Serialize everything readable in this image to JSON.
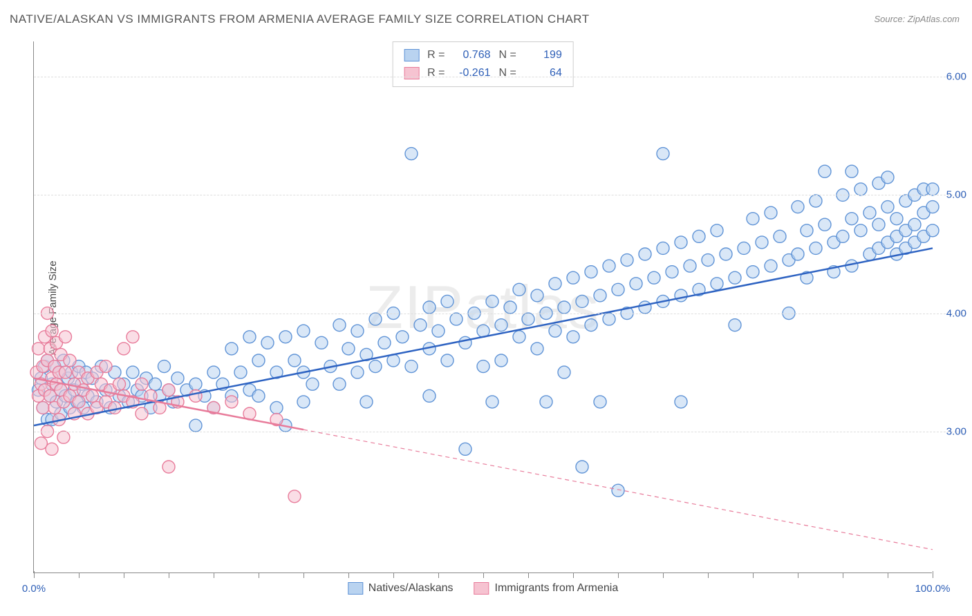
{
  "title": "NATIVE/ALASKAN VS IMMIGRANTS FROM ARMENIA AVERAGE FAMILY SIZE CORRELATION CHART",
  "source": "Source: ZipAtlas.com",
  "ylabel": "Average Family Size",
  "watermark_a": "ZIP",
  "watermark_b": "atlas",
  "chart": {
    "type": "scatter",
    "xlim": [
      0,
      100
    ],
    "ylim": [
      1.8,
      6.3
    ],
    "xticks_major": [
      0,
      100
    ],
    "xticks_major_labels": [
      "0.0%",
      "100.0%"
    ],
    "xticks_minor": [
      5,
      10,
      15,
      20,
      25,
      30,
      35,
      40,
      45,
      50,
      55,
      60,
      65,
      70,
      75,
      80,
      85,
      90,
      95
    ],
    "yticks": [
      3,
      4,
      5,
      6
    ],
    "ytick_labels": [
      "3.00",
      "4.00",
      "5.00",
      "6.00"
    ],
    "grid_color": "#dddddd",
    "marker_radius": 9,
    "marker_stroke_width": 1.4,
    "trend_line_width": 2.5
  },
  "series": [
    {
      "key": "natives",
      "label": "Natives/Alaskans",
      "fill": "#b9d3f0",
      "stroke": "#5f93d6",
      "fill_opacity": 0.55,
      "trend": {
        "x1": 0,
        "y1": 3.05,
        "x2": 100,
        "y2": 4.55,
        "color": "#2e63c2",
        "dash": null,
        "extrapolate": false
      },
      "R": "0.768",
      "N": "199",
      "points": [
        [
          0.5,
          3.35
        ],
        [
          0.8,
          3.45
        ],
        [
          1.0,
          3.2
        ],
        [
          1.2,
          3.55
        ],
        [
          1.5,
          3.1
        ],
        [
          1.5,
          3.6
        ],
        [
          1.8,
          3.3
        ],
        [
          2.0,
          3.4
        ],
        [
          2.0,
          3.1
        ],
        [
          2.3,
          3.55
        ],
        [
          2.5,
          3.25
        ],
        [
          2.8,
          3.5
        ],
        [
          3.0,
          3.35
        ],
        [
          3.0,
          3.15
        ],
        [
          3.3,
          3.6
        ],
        [
          3.5,
          3.3
        ],
        [
          3.8,
          3.45
        ],
        [
          4.0,
          3.2
        ],
        [
          4.2,
          3.5
        ],
        [
          4.5,
          3.35
        ],
        [
          4.8,
          3.25
        ],
        [
          5.0,
          3.55
        ],
        [
          5.3,
          3.4
        ],
        [
          5.5,
          3.2
        ],
        [
          5.8,
          3.5
        ],
        [
          6.0,
          3.3
        ],
        [
          6.5,
          3.45
        ],
        [
          7.0,
          3.25
        ],
        [
          7.5,
          3.55
        ],
        [
          8.0,
          3.35
        ],
        [
          8.5,
          3.2
        ],
        [
          9.0,
          3.5
        ],
        [
          9.5,
          3.3
        ],
        [
          10,
          3.4
        ],
        [
          10.5,
          3.25
        ],
        [
          11,
          3.5
        ],
        [
          11.5,
          3.35
        ],
        [
          12,
          3.3
        ],
        [
          12.5,
          3.45
        ],
        [
          13,
          3.2
        ],
        [
          13.5,
          3.4
        ],
        [
          14,
          3.3
        ],
        [
          14.5,
          3.55
        ],
        [
          15,
          3.35
        ],
        [
          15.5,
          3.25
        ],
        [
          16,
          3.45
        ],
        [
          17,
          3.35
        ],
        [
          18,
          3.4
        ],
        [
          18,
          3.05
        ],
        [
          19,
          3.3
        ],
        [
          20,
          3.5
        ],
        [
          20,
          3.2
        ],
        [
          21,
          3.4
        ],
        [
          22,
          3.7
        ],
        [
          22,
          3.3
        ],
        [
          23,
          3.5
        ],
        [
          24,
          3.8
        ],
        [
          24,
          3.35
        ],
        [
          25,
          3.6
        ],
        [
          25,
          3.3
        ],
        [
          26,
          3.75
        ],
        [
          27,
          3.5
        ],
        [
          27,
          3.2
        ],
        [
          28,
          3.8
        ],
        [
          28,
          3.05
        ],
        [
          29,
          3.6
        ],
        [
          30,
          3.5
        ],
        [
          30,
          3.85
        ],
        [
          31,
          3.4
        ],
        [
          32,
          3.75
        ],
        [
          33,
          3.55
        ],
        [
          34,
          3.9
        ],
        [
          34,
          3.4
        ],
        [
          35,
          3.7
        ],
        [
          36,
          3.85
        ],
        [
          36,
          3.5
        ],
        [
          37,
          3.65
        ],
        [
          38,
          3.95
        ],
        [
          38,
          3.55
        ],
        [
          39,
          3.75
        ],
        [
          40,
          3.6
        ],
        [
          40,
          4.0
        ],
        [
          41,
          3.8
        ],
        [
          42,
          3.55
        ],
        [
          42,
          5.35
        ],
        [
          43,
          3.9
        ],
        [
          44,
          3.7
        ],
        [
          44,
          4.05
        ],
        [
          45,
          3.85
        ],
        [
          46,
          3.6
        ],
        [
          46,
          4.1
        ],
        [
          47,
          3.95
        ],
        [
          48,
          3.75
        ],
        [
          48,
          2.85
        ],
        [
          49,
          4.0
        ],
        [
          50,
          3.85
        ],
        [
          50,
          3.55
        ],
        [
          51,
          4.1
        ],
        [
          52,
          3.9
        ],
        [
          52,
          3.6
        ],
        [
          53,
          4.05
        ],
        [
          54,
          3.8
        ],
        [
          54,
          4.2
        ],
        [
          55,
          3.95
        ],
        [
          56,
          3.7
        ],
        [
          56,
          4.15
        ],
        [
          57,
          4.0
        ],
        [
          58,
          3.85
        ],
        [
          58,
          4.25
        ],
        [
          59,
          4.05
        ],
        [
          60,
          3.8
        ],
        [
          60,
          4.3
        ],
        [
          61,
          4.1
        ],
        [
          61,
          2.7
        ],
        [
          62,
          3.9
        ],
        [
          62,
          4.35
        ],
        [
          63,
          4.15
        ],
        [
          64,
          3.95
        ],
        [
          64,
          4.4
        ],
        [
          65,
          4.2
        ],
        [
          65,
          2.5
        ],
        [
          66,
          4.0
        ],
        [
          66,
          4.45
        ],
        [
          67,
          4.25
        ],
        [
          68,
          4.05
        ],
        [
          68,
          4.5
        ],
        [
          69,
          4.3
        ],
        [
          70,
          4.1
        ],
        [
          70,
          4.55
        ],
        [
          70,
          5.35
        ],
        [
          71,
          4.35
        ],
        [
          72,
          4.15
        ],
        [
          72,
          4.6
        ],
        [
          73,
          4.4
        ],
        [
          74,
          4.2
        ],
        [
          74,
          4.65
        ],
        [
          75,
          4.45
        ],
        [
          76,
          4.25
        ],
        [
          76,
          4.7
        ],
        [
          77,
          4.5
        ],
        [
          78,
          4.3
        ],
        [
          78,
          3.9
        ],
        [
          79,
          4.55
        ],
        [
          80,
          4.35
        ],
        [
          80,
          4.8
        ],
        [
          81,
          4.6
        ],
        [
          82,
          4.4
        ],
        [
          82,
          4.85
        ],
        [
          83,
          4.65
        ],
        [
          84,
          4.45
        ],
        [
          84,
          4.0
        ],
        [
          85,
          4.9
        ],
        [
          85,
          4.5
        ],
        [
          86,
          4.7
        ],
        [
          86,
          4.3
        ],
        [
          87,
          4.95
        ],
        [
          87,
          4.55
        ],
        [
          88,
          4.75
        ],
        [
          88,
          5.2
        ],
        [
          89,
          4.6
        ],
        [
          89,
          4.35
        ],
        [
          90,
          5.0
        ],
        [
          90,
          4.65
        ],
        [
          91,
          4.8
        ],
        [
          91,
          5.2
        ],
        [
          91,
          4.4
        ],
        [
          92,
          4.7
        ],
        [
          92,
          5.05
        ],
        [
          93,
          4.85
        ],
        [
          93,
          4.5
        ],
        [
          94,
          4.75
        ],
        [
          94,
          5.1
        ],
        [
          94,
          4.55
        ],
        [
          95,
          4.9
        ],
        [
          95,
          4.6
        ],
        [
          95,
          5.15
        ],
        [
          96,
          4.8
        ],
        [
          96,
          4.5
        ],
        [
          96,
          4.65
        ],
        [
          97,
          4.95
        ],
        [
          97,
          4.7
        ],
        [
          97,
          4.55
        ],
        [
          98,
          5.0
        ],
        [
          98,
          4.75
        ],
        [
          98,
          4.6
        ],
        [
          99,
          4.85
        ],
        [
          99,
          5.05
        ],
        [
          99,
          4.65
        ],
        [
          100,
          4.9
        ],
        [
          100,
          4.7
        ],
        [
          100,
          5.05
        ],
        [
          63,
          3.25
        ],
        [
          72,
          3.25
        ],
        [
          51,
          3.25
        ],
        [
          57,
          3.25
        ],
        [
          44,
          3.3
        ],
        [
          37,
          3.25
        ],
        [
          30,
          3.25
        ],
        [
          59,
          3.5
        ]
      ]
    },
    {
      "key": "armenia",
      "label": "Immigrants from Armenia",
      "fill": "#f6c3d1",
      "stroke": "#e87b9a",
      "fill_opacity": 0.55,
      "trend": {
        "x1": 0,
        "y1": 3.45,
        "x2": 100,
        "y2": 2.0,
        "color": "#e87b9a",
        "dash": "6,5",
        "extrapolate_from": 30
      },
      "R": "-0.261",
      "N": "64",
      "points": [
        [
          0.3,
          3.5
        ],
        [
          0.5,
          3.3
        ],
        [
          0.5,
          3.7
        ],
        [
          0.8,
          3.4
        ],
        [
          0.8,
          2.9
        ],
        [
          1.0,
          3.55
        ],
        [
          1.0,
          3.2
        ],
        [
          1.2,
          3.8
        ],
        [
          1.2,
          3.35
        ],
        [
          1.5,
          3.0
        ],
        [
          1.5,
          3.6
        ],
        [
          1.5,
          4.0
        ],
        [
          1.8,
          3.3
        ],
        [
          1.8,
          3.7
        ],
        [
          2.0,
          3.45
        ],
        [
          2.0,
          2.85
        ],
        [
          2.0,
          3.85
        ],
        [
          2.3,
          3.55
        ],
        [
          2.3,
          3.2
        ],
        [
          2.5,
          3.4
        ],
        [
          2.5,
          3.75
        ],
        [
          2.8,
          3.1
        ],
        [
          2.8,
          3.5
        ],
        [
          3.0,
          3.35
        ],
        [
          3.0,
          3.65
        ],
        [
          3.3,
          3.25
        ],
        [
          3.3,
          2.95
        ],
        [
          3.5,
          3.5
        ],
        [
          3.5,
          3.8
        ],
        [
          4.0,
          3.3
        ],
        [
          4.0,
          3.6
        ],
        [
          4.5,
          3.4
        ],
        [
          4.5,
          3.15
        ],
        [
          5.0,
          3.5
        ],
        [
          5.0,
          3.25
        ],
        [
          5.5,
          3.35
        ],
        [
          6.0,
          3.45
        ],
        [
          6.0,
          3.15
        ],
        [
          6.5,
          3.3
        ],
        [
          7.0,
          3.5
        ],
        [
          7.0,
          3.2
        ],
        [
          7.5,
          3.4
        ],
        [
          8.0,
          3.25
        ],
        [
          8.0,
          3.55
        ],
        [
          8.5,
          3.35
        ],
        [
          9.0,
          3.2
        ],
        [
          9.5,
          3.4
        ],
        [
          10,
          3.7
        ],
        [
          10,
          3.3
        ],
        [
          11,
          3.8
        ],
        [
          11,
          3.25
        ],
        [
          12,
          3.4
        ],
        [
          12,
          3.15
        ],
        [
          13,
          3.3
        ],
        [
          14,
          3.2
        ],
        [
          15,
          3.35
        ],
        [
          15,
          2.7
        ],
        [
          16,
          3.25
        ],
        [
          18,
          3.3
        ],
        [
          20,
          3.2
        ],
        [
          22,
          3.25
        ],
        [
          24,
          3.15
        ],
        [
          27,
          3.1
        ],
        [
          29,
          2.45
        ]
      ]
    }
  ],
  "stats_labels": {
    "R": "R =",
    "N": "N ="
  },
  "legend_bottom": [
    {
      "label": "Natives/Alaskans",
      "fill": "#b9d3f0",
      "stroke": "#5f93d6"
    },
    {
      "label": "Immigrants from Armenia",
      "fill": "#f6c3d1",
      "stroke": "#e87b9a"
    }
  ]
}
